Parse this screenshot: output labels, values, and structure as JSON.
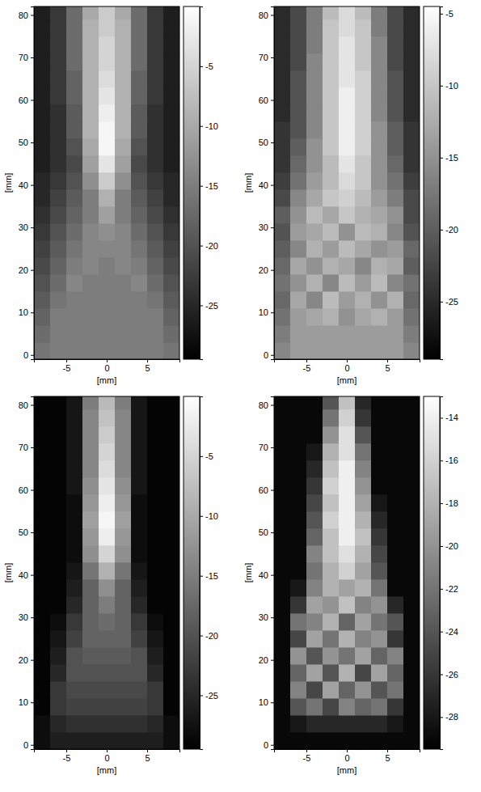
{
  "chart_data": [
    {
      "type": "heatmap",
      "xlabel": "[mm]",
      "ylabel": "[mm]",
      "x": [
        -8,
        -6,
        -4,
        -2,
        0,
        2,
        4,
        6,
        8
      ],
      "y": [
        1,
        5,
        9,
        13,
        17,
        21,
        25,
        29,
        33,
        37,
        41,
        45,
        49,
        53,
        57,
        61,
        65,
        69,
        73,
        77,
        81
      ],
      "xlim": [
        -9,
        9
      ],
      "ylim": [
        -1,
        82
      ],
      "xticks": [
        -5,
        0,
        5
      ],
      "yticks": [
        0,
        10,
        20,
        30,
        40,
        50,
        60,
        70,
        80
      ],
      "colorbar_range": [
        -29.5,
        0
      ],
      "colorbar_ticks": [
        -5,
        -10,
        -15,
        -20,
        -25
      ],
      "z": [
        [
          -16,
          -15,
          -15,
          -15,
          -15,
          -15,
          -15,
          -15,
          -16
        ],
        [
          -17,
          -15,
          -15,
          -15,
          -15,
          -15,
          -15,
          -15,
          -17
        ],
        [
          -18,
          -15,
          -15,
          -15,
          -15,
          -15,
          -15,
          -15,
          -18
        ],
        [
          -19,
          -16,
          -15,
          -15,
          -15,
          -15,
          -15,
          -16,
          -19
        ],
        [
          -20,
          -17,
          -14,
          -15,
          -15,
          -15,
          -14,
          -17,
          -20
        ],
        [
          -21,
          -18,
          -15,
          -14,
          -15,
          -14,
          -15,
          -18,
          -21
        ],
        [
          -22,
          -19,
          -16,
          -14,
          -14,
          -14,
          -16,
          -19,
          -22
        ],
        [
          -23,
          -20,
          -17,
          -14,
          -13,
          -14,
          -17,
          -20,
          -23
        ],
        [
          -24,
          -21,
          -18,
          -15,
          -11,
          -15,
          -18,
          -21,
          -24
        ],
        [
          -25,
          -22,
          -19,
          -15,
          -9,
          -15,
          -19,
          -22,
          -25
        ],
        [
          -25,
          -23,
          -20,
          -13,
          -6,
          -13,
          -20,
          -23,
          -25
        ],
        [
          -26,
          -24,
          -21,
          -11,
          -3,
          -11,
          -21,
          -24,
          -26
        ],
        [
          -26,
          -24,
          -20,
          -10,
          -1,
          -10,
          -20,
          -24,
          -26
        ],
        [
          -26,
          -24,
          -19,
          -9,
          -1,
          -9,
          -19,
          -24,
          -26
        ],
        [
          -26,
          -24,
          -19,
          -9,
          -2,
          -9,
          -19,
          -24,
          -26
        ],
        [
          -26,
          -23,
          -18,
          -9,
          -3,
          -9,
          -18,
          -23,
          -26
        ],
        [
          -26,
          -23,
          -18,
          -9,
          -4,
          -9,
          -18,
          -23,
          -26
        ],
        [
          -26,
          -23,
          -17,
          -9,
          -5,
          -9,
          -17,
          -23,
          -26
        ],
        [
          -26,
          -23,
          -17,
          -9,
          -5,
          -9,
          -17,
          -23,
          -26
        ],
        [
          -26,
          -23,
          -17,
          -9,
          -6,
          -9,
          -17,
          -23,
          -26
        ],
        [
          -26,
          -23,
          -17,
          -10,
          -6,
          -10,
          -17,
          -23,
          -26
        ]
      ]
    },
    {
      "type": "heatmap",
      "xlabel": "[mm]",
      "ylabel": "[mm]",
      "x": [
        -8,
        -6,
        -4,
        -2,
        0,
        2,
        4,
        6,
        8
      ],
      "y": [
        1,
        5,
        9,
        13,
        17,
        21,
        25,
        29,
        33,
        37,
        41,
        45,
        49,
        53,
        57,
        61,
        65,
        69,
        73,
        77,
        81
      ],
      "xlim": [
        -9,
        9
      ],
      "ylim": [
        -1,
        82
      ],
      "xticks": [
        -5,
        0,
        5
      ],
      "yticks": [
        0,
        10,
        20,
        30,
        40,
        50,
        60,
        70,
        80
      ],
      "colorbar_range": [
        -29,
        -4.5
      ],
      "colorbar_ticks": [
        -5,
        -10,
        -15,
        -20,
        -25
      ],
      "z": [
        [
          -16,
          -14,
          -14,
          -14,
          -14,
          -14,
          -14,
          -14,
          -16
        ],
        [
          -17,
          -14,
          -14,
          -14,
          -14,
          -14,
          -14,
          -14,
          -17
        ],
        [
          -18,
          -14,
          -13,
          -12,
          -15,
          -13,
          -12,
          -14,
          -18
        ],
        [
          -19,
          -13,
          -16,
          -11,
          -14,
          -12,
          -15,
          -12,
          -19
        ],
        [
          -18,
          -15,
          -12,
          -16,
          -11,
          -14,
          -11,
          -16,
          -18
        ],
        [
          -19,
          -13,
          -15,
          -12,
          -13,
          -16,
          -12,
          -13,
          -20
        ],
        [
          -20,
          -16,
          -12,
          -14,
          -11,
          -13,
          -15,
          -14,
          -19
        ],
        [
          -21,
          -14,
          -13,
          -11,
          -15,
          -11,
          -12,
          -16,
          -21
        ],
        [
          -20,
          -15,
          -11,
          -13,
          -10,
          -12,
          -13,
          -15,
          -22
        ],
        [
          -22,
          -16,
          -13,
          -10,
          -9,
          -11,
          -14,
          -17,
          -22
        ],
        [
          -23,
          -18,
          -14,
          -11,
          -8,
          -10,
          -15,
          -18,
          -23
        ],
        [
          -24,
          -19,
          -15,
          -11,
          -7,
          -10,
          -15,
          -19,
          -24
        ],
        [
          -24,
          -20,
          -15,
          -10,
          -6,
          -9,
          -15,
          -20,
          -24
        ],
        [
          -24,
          -21,
          -16,
          -10,
          -6,
          -9,
          -15,
          -20,
          -24
        ],
        [
          -25,
          -21,
          -16,
          -10,
          -6,
          -9,
          -16,
          -21,
          -25
        ],
        [
          -25,
          -21,
          -16,
          -10,
          -6,
          -9,
          -16,
          -21,
          -25
        ],
        [
          -25,
          -21,
          -16,
          -10,
          -7,
          -9,
          -16,
          -21,
          -25
        ],
        [
          -25,
          -22,
          -16,
          -10,
          -7,
          -10,
          -16,
          -22,
          -25
        ],
        [
          -25,
          -22,
          -17,
          -10,
          -7,
          -10,
          -16,
          -22,
          -25
        ],
        [
          -25,
          -22,
          -17,
          -10,
          -8,
          -10,
          -17,
          -22,
          -25
        ],
        [
          -25,
          -22,
          -17,
          -11,
          -8,
          -11,
          -17,
          -22,
          -25
        ]
      ]
    },
    {
      "type": "heatmap",
      "xlabel": "[mm]",
      "ylabel": "[mm]",
      "x": [
        -8,
        -6,
        -4,
        -2,
        0,
        2,
        4,
        6,
        8
      ],
      "y": [
        1,
        5,
        9,
        13,
        17,
        21,
        25,
        29,
        33,
        37,
        41,
        45,
        49,
        53,
        57,
        61,
        65,
        69,
        73,
        77,
        81
      ],
      "xlim": [
        -9,
        9
      ],
      "ylim": [
        -1,
        82
      ],
      "xticks": [
        -5,
        0,
        5
      ],
      "yticks": [
        0,
        10,
        20,
        30,
        40,
        50,
        60,
        70,
        80
      ],
      "colorbar_range": [
        -29.5,
        0
      ],
      "colorbar_ticks": [
        -5,
        -10,
        -15,
        -20,
        -25
      ],
      "z": [
        [
          -28,
          -26,
          -26,
          -26,
          -26,
          -26,
          -26,
          -26,
          -28
        ],
        [
          -28,
          -25,
          -24,
          -24,
          -24,
          -24,
          -24,
          -25,
          -28
        ],
        [
          -29,
          -23,
          -22,
          -22,
          -22,
          -22,
          -22,
          -23,
          -29
        ],
        [
          -29,
          -23,
          -21,
          -21,
          -21,
          -21,
          -21,
          -23,
          -29
        ],
        [
          -29,
          -25,
          -20,
          -20,
          -20,
          -20,
          -20,
          -25,
          -29
        ],
        [
          -29,
          -26,
          -20,
          -19,
          -19,
          -19,
          -20,
          -26,
          -29
        ],
        [
          -29,
          -27,
          -22,
          -18,
          -18,
          -18,
          -22,
          -27,
          -29
        ],
        [
          -29,
          -28,
          -23,
          -18,
          -17,
          -18,
          -23,
          -28,
          -29
        ],
        [
          -29,
          -29,
          -25,
          -18,
          -15,
          -18,
          -25,
          -29,
          -29
        ],
        [
          -29,
          -29,
          -26,
          -18,
          -13,
          -18,
          -26,
          -29,
          -29
        ],
        [
          -29,
          -29,
          -27,
          -16,
          -9,
          -16,
          -27,
          -29,
          -29
        ],
        [
          -29,
          -29,
          -28,
          -13,
          -5,
          -13,
          -28,
          -29,
          -29
        ],
        [
          -29,
          -29,
          -28,
          -12,
          -2,
          -12,
          -28,
          -29,
          -29
        ],
        [
          -29,
          -29,
          -28,
          -11,
          -1,
          -11,
          -28,
          -29,
          -29
        ],
        [
          -29,
          -29,
          -28,
          -12,
          -2,
          -12,
          -28,
          -29,
          -29
        ],
        [
          -29,
          -29,
          -27,
          -13,
          -3,
          -13,
          -27,
          -29,
          -29
        ],
        [
          -29,
          -29,
          -27,
          -14,
          -4,
          -14,
          -27,
          -29,
          -29
        ],
        [
          -29,
          -29,
          -27,
          -14,
          -5,
          -14,
          -27,
          -29,
          -29
        ],
        [
          -29,
          -29,
          -27,
          -14,
          -6,
          -14,
          -27,
          -29,
          -29
        ],
        [
          -29,
          -29,
          -27,
          -14,
          -7,
          -14,
          -27,
          -29,
          -29
        ],
        [
          -29,
          -29,
          -27,
          -15,
          -8,
          -15,
          -27,
          -29,
          -29
        ]
      ]
    },
    {
      "type": "heatmap",
      "xlabel": "[mm]",
      "ylabel": "[mm]",
      "x": [
        -8,
        -6,
        -4,
        -2,
        0,
        2,
        4,
        6,
        8
      ],
      "y": [
        1,
        5,
        9,
        13,
        17,
        21,
        25,
        29,
        33,
        37,
        41,
        45,
        49,
        53,
        57,
        61,
        65,
        69,
        73,
        77,
        81
      ],
      "xlim": [
        -9,
        9
      ],
      "ylim": [
        -1,
        82
      ],
      "xticks": [
        -5,
        0,
        5
      ],
      "yticks": [
        0,
        10,
        20,
        30,
        40,
        50,
        60,
        70,
        80
      ],
      "colorbar_range": [
        -29.5,
        -13
      ],
      "colorbar_ticks": [
        -14,
        -16,
        -18,
        -20,
        -22,
        -24,
        -26,
        -28
      ],
      "z": [
        [
          -29,
          -29,
          -29,
          -29,
          -29,
          -29,
          -29,
          -29,
          -29
        ],
        [
          -29,
          -28,
          -27,
          -27,
          -27,
          -27,
          -27,
          -28,
          -29
        ],
        [
          -29,
          -24,
          -22,
          -25,
          -21,
          -23,
          -22,
          -26,
          -29
        ],
        [
          -29,
          -21,
          -25,
          -19,
          -23,
          -20,
          -24,
          -22,
          -29
        ],
        [
          -29,
          -23,
          -19,
          -24,
          -18,
          -25,
          -19,
          -23,
          -29
        ],
        [
          -29,
          -20,
          -24,
          -20,
          -22,
          -19,
          -23,
          -21,
          -29
        ],
        [
          -29,
          -25,
          -19,
          -22,
          -18,
          -21,
          -20,
          -26,
          -29
        ],
        [
          -29,
          -22,
          -21,
          -18,
          -23,
          -19,
          -22,
          -24,
          -29
        ],
        [
          -29,
          -26,
          -19,
          -20,
          -17,
          -21,
          -20,
          -27,
          -29
        ],
        [
          -29,
          -28,
          -21,
          -18,
          -19,
          -18,
          -22,
          -29,
          -29
        ],
        [
          -29,
          -29,
          -22,
          -18,
          -16,
          -19,
          -24,
          -29,
          -29
        ],
        [
          -29,
          -29,
          -21,
          -17,
          -15,
          -18,
          -25,
          -29,
          -29
        ],
        [
          -29,
          -29,
          -23,
          -17,
          -14,
          -17,
          -26,
          -29,
          -29
        ],
        [
          -29,
          -29,
          -24,
          -16,
          -14,
          -18,
          -27,
          -29,
          -29
        ],
        [
          -29,
          -29,
          -25,
          -17,
          -14,
          -19,
          -28,
          -29,
          -29
        ],
        [
          -29,
          -29,
          -26,
          -16,
          -14,
          -20,
          -29,
          -29,
          -29
        ],
        [
          -29,
          -29,
          -27,
          -17,
          -14,
          -21,
          -29,
          -29,
          -29
        ],
        [
          -29,
          -29,
          -28,
          -18,
          -15,
          -22,
          -29,
          -29,
          -29
        ],
        [
          -29,
          -29,
          -29,
          -20,
          -15,
          -24,
          -29,
          -29,
          -29
        ],
        [
          -29,
          -29,
          -29,
          -22,
          -16,
          -26,
          -29,
          -29,
          -29
        ],
        [
          -29,
          -29,
          -29,
          -24,
          -17,
          -27,
          -29,
          -29,
          -29
        ]
      ]
    }
  ]
}
